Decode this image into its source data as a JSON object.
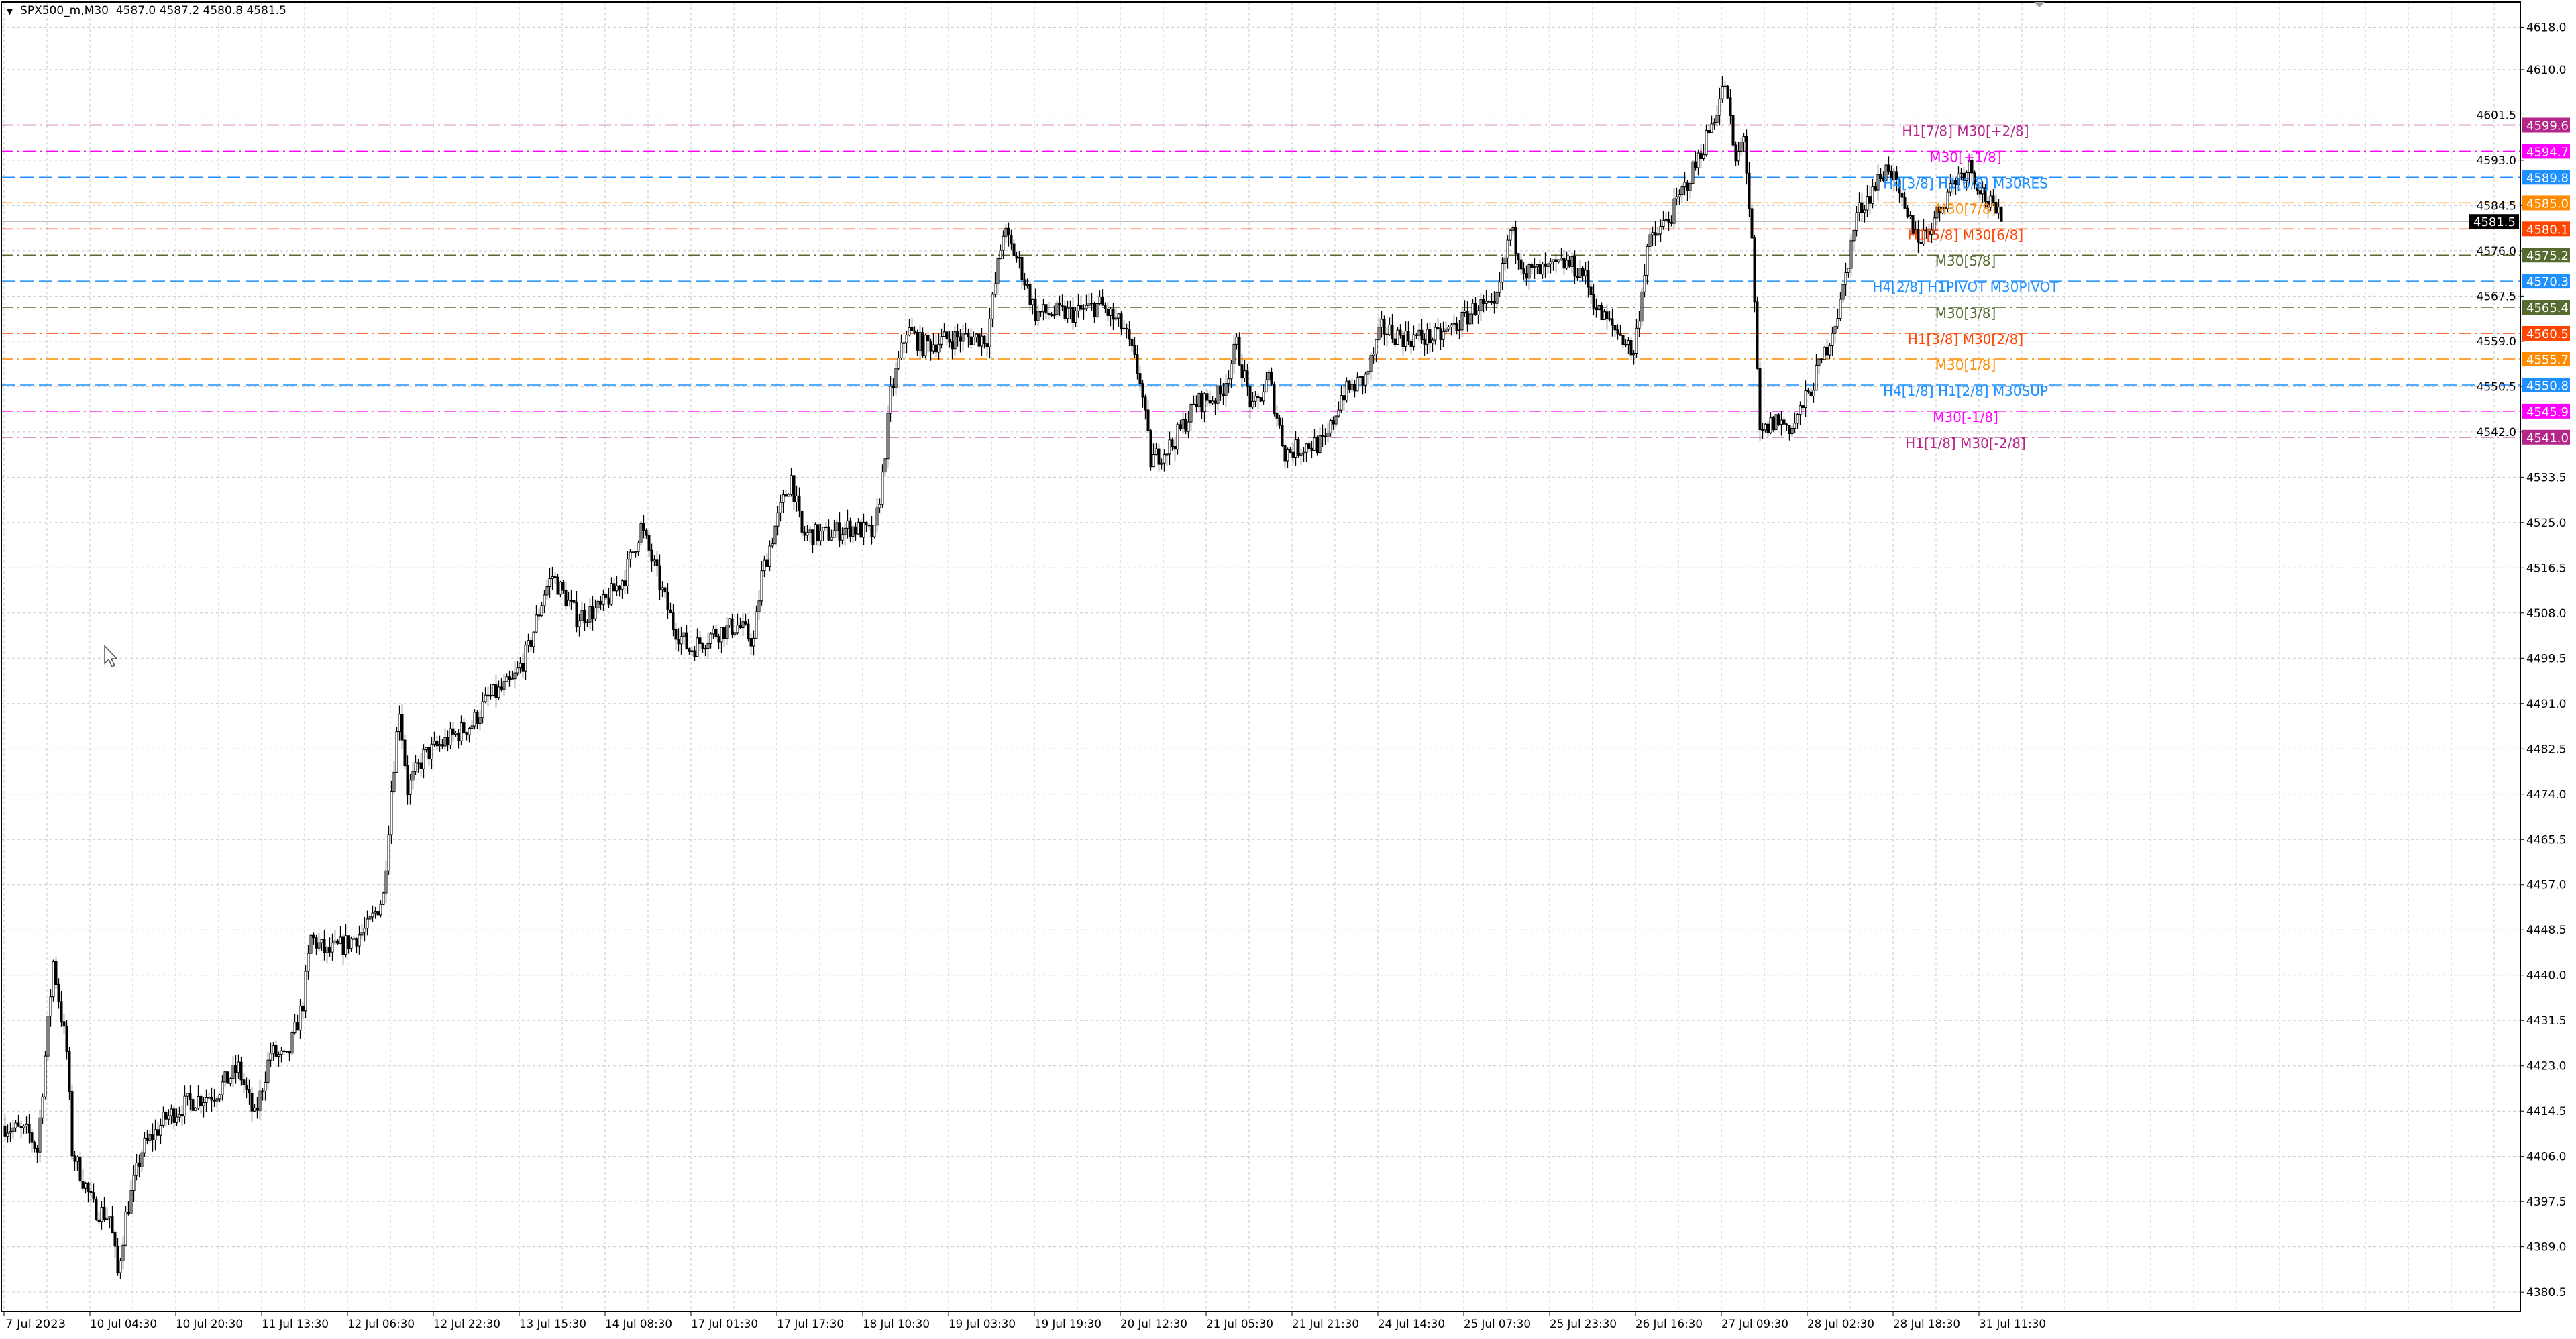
{
  "header": {
    "symbol_timeframe": "SPX500_m,M30",
    "ohlc": "4587.0 4587.2 4580.8 4581.5"
  },
  "colors": {
    "background": "#ffffff",
    "grid": "#c8c8c8",
    "bull_body": "#ffffff",
    "bear_body": "#000000",
    "current_price_line": "#c0c0c0"
  },
  "chart_data": {
    "type": "candlestick",
    "ylim": [
      4376,
      4622
    ],
    "y_ticks": [
      "4618.0",
      "4610.0",
      "4601.5",
      "4593.0",
      "4584.5",
      "4576.0",
      "4567.5",
      "4559.0",
      "4550.5",
      "4542.0",
      "4533.5",
      "4525.0",
      "4516.5",
      "4508.0",
      "4499.5",
      "4491.0",
      "4482.5",
      "4474.0",
      "4465.5",
      "4457.0",
      "4448.5",
      "4440.0",
      "4431.5",
      "4423.0",
      "4414.5",
      "4406.0",
      "4397.5",
      "4389.0",
      "4380.5"
    ],
    "x_ticks": [
      "7 Jul 2023",
      "10 Jul 04:30",
      "10 Jul 20:30",
      "11 Jul 13:30",
      "12 Jul 06:30",
      "12 Jul 22:30",
      "13 Jul 15:30",
      "14 Jul 08:30",
      "17 Jul 01:30",
      "17 Jul 17:30",
      "18 Jul 10:30",
      "19 Jul 03:30",
      "19 Jul 19:30",
      "20 Jul 12:30",
      "21 Jul 05:30",
      "21 Jul 21:30",
      "24 Jul 14:30",
      "25 Jul 07:30",
      "25 Jul 23:30",
      "26 Jul 16:30",
      "27 Jul 09:30",
      "28 Jul 02:30",
      "28 Jul 18:30",
      "31 Jul 11:30"
    ],
    "bars_per_x_tick": 32,
    "close_path": [
      [
        0,
        4411.7
      ],
      [
        9,
        4410.1
      ],
      [
        12,
        4407.1
      ],
      [
        18,
        4442.5
      ],
      [
        23,
        4425.6
      ],
      [
        25,
        4407.1
      ],
      [
        33,
        4396.3
      ],
      [
        39,
        4394.7
      ],
      [
        42,
        4383.9
      ],
      [
        45,
        4394.7
      ],
      [
        51,
        4407.1
      ],
      [
        60,
        4413.2
      ],
      [
        69,
        4416.3
      ],
      [
        78,
        4417.8
      ],
      [
        87,
        4422.5
      ],
      [
        93,
        4413.2
      ],
      [
        99,
        4425.6
      ],
      [
        105,
        4424.0
      ],
      [
        111,
        4434.8
      ],
      [
        114,
        4447.1
      ],
      [
        120,
        4444.1
      ],
      [
        126,
        4445.6
      ],
      [
        135,
        4448.7
      ],
      [
        141,
        4454.9
      ],
      [
        144,
        4474.9
      ],
      [
        147,
        4490.3
      ],
      [
        150,
        4474.9
      ],
      [
        156,
        4481.1
      ],
      [
        165,
        4484.2
      ],
      [
        174,
        4487.2
      ],
      [
        180,
        4491.9
      ],
      [
        189,
        4494.9
      ],
      [
        195,
        4501.1
      ],
      [
        201,
        4511.9
      ],
      [
        204,
        4515.0
      ],
      [
        213,
        4507.3
      ],
      [
        222,
        4508.8
      ],
      [
        231,
        4515.0
      ],
      [
        237,
        4524.2
      ],
      [
        243,
        4515.0
      ],
      [
        249,
        4505.7
      ],
      [
        255,
        4501.1
      ],
      [
        264,
        4504.2
      ],
      [
        273,
        4505.7
      ],
      [
        279,
        4502.7
      ],
      [
        282,
        4515.0
      ],
      [
        287,
        4524.2
      ],
      [
        293,
        4533.5
      ],
      [
        297,
        4522.7
      ],
      [
        306,
        4522.7
      ],
      [
        315,
        4524.2
      ],
      [
        324,
        4522.7
      ],
      [
        327,
        4533.5
      ],
      [
        330,
        4548.9
      ],
      [
        336,
        4561.3
      ],
      [
        342,
        4558.2
      ],
      [
        354,
        4559.7
      ],
      [
        366,
        4559.7
      ],
      [
        372,
        4579.8
      ],
      [
        378,
        4573.6
      ],
      [
        384,
        4564.3
      ],
      [
        390,
        4564.3
      ],
      [
        399,
        4564.3
      ],
      [
        408,
        4565.9
      ],
      [
        417,
        4561.3
      ],
      [
        423,
        4552.0
      ],
      [
        427,
        4536.6
      ],
      [
        435,
        4539.7
      ],
      [
        444,
        4547.4
      ],
      [
        453,
        4548.9
      ],
      [
        459,
        4558.2
      ],
      [
        465,
        4545.8
      ],
      [
        471,
        4552.0
      ],
      [
        477,
        4538.1
      ],
      [
        486,
        4539.7
      ],
      [
        492,
        4539.7
      ],
      [
        498,
        4548.9
      ],
      [
        507,
        4552.0
      ],
      [
        513,
        4561.3
      ],
      [
        522,
        4559.7
      ],
      [
        534,
        4559.7
      ],
      [
        543,
        4562.8
      ],
      [
        549,
        4565.9
      ],
      [
        555,
        4564.3
      ],
      [
        561,
        4579.8
      ],
      [
        567,
        4572.0
      ],
      [
        573,
        4572.0
      ],
      [
        582,
        4573.6
      ],
      [
        588,
        4572.0
      ],
      [
        594,
        4564.3
      ],
      [
        603,
        4559.7
      ],
      [
        607,
        4556.6
      ],
      [
        612,
        4576.7
      ],
      [
        621,
        4582.8
      ],
      [
        630,
        4592.1
      ],
      [
        636,
        4599.8
      ],
      [
        641,
        4607.5
      ],
      [
        645,
        4592.1
      ],
      [
        648,
        4598.3
      ],
      [
        651,
        4576.7
      ],
      [
        654,
        4541.2
      ],
      [
        660,
        4544.3
      ],
      [
        666,
        4542.8
      ],
      [
        672,
        4548.9
      ],
      [
        678,
        4556.6
      ],
      [
        684,
        4565.9
      ],
      [
        690,
        4582.8
      ],
      [
        696,
        4587.5
      ],
      [
        702,
        4592.1
      ],
      [
        708,
        4582.8
      ],
      [
        714,
        4578.2
      ],
      [
        720,
        4582.8
      ],
      [
        726,
        4589.0
      ],
      [
        732,
        4592.1
      ],
      [
        738,
        4585.9
      ],
      [
        744,
        4581.5
      ]
    ],
    "current_price": {
      "value": 4581.5,
      "label": "4581.5",
      "color": "#000000"
    },
    "levels": [
      {
        "value": 4599.6,
        "label": "4599.6",
        "text": "H1[7/8] M30[+2/8]",
        "color": "#b5268a",
        "style": "dashdot"
      },
      {
        "value": 4594.7,
        "label": "4594.7",
        "text": "M30[+1/8]",
        "color": "#ff00ff",
        "style": "dashdot"
      },
      {
        "value": 4589.8,
        "label": "4589.8",
        "text": "H4[3/8] H1[6/8] M30RES",
        "color": "#1e90ff",
        "style": "dash"
      },
      {
        "value": 4585.0,
        "label": "4585.0",
        "text": "M30[7/8]",
        "color": "#ff8c00",
        "style": "dashdot"
      },
      {
        "value": 4580.1,
        "label": "4580.1",
        "text": "H1[5/8] M30[6/8]",
        "color": "#ff4500",
        "style": "dashdot"
      },
      {
        "value": 4575.2,
        "label": "4575.2",
        "text": "M30[5/8]",
        "color": "#556b2f",
        "style": "dashdot"
      },
      {
        "value": 4570.3,
        "label": "4570.3",
        "text": "H4[2/8] H1PIVOT M30PIVOT",
        "color": "#1e90ff",
        "style": "dash"
      },
      {
        "value": 4565.4,
        "label": "4565.4",
        "text": "M30[3/8]",
        "color": "#556b2f",
        "style": "dashdot"
      },
      {
        "value": 4560.5,
        "label": "4560.5",
        "text": "H1[3/8] M30[2/8]",
        "color": "#ff4500",
        "style": "dashdot"
      },
      {
        "value": 4555.7,
        "label": "4555.7",
        "text": "M30[1/8]",
        "color": "#ff8c00",
        "style": "dashdot"
      },
      {
        "value": 4550.8,
        "label": "4550.8",
        "text": "H4[1/8] H1[2/8] M30SUP",
        "color": "#1e90ff",
        "style": "dash"
      },
      {
        "value": 4545.9,
        "label": "4545.9",
        "text": "M30[-1/8]",
        "color": "#ff00ff",
        "style": "dashdot"
      },
      {
        "value": 4541.0,
        "label": "4541.0",
        "text": "H1[1/8] M30[-2/8]",
        "color": "#b5268a",
        "style": "dashdot"
      }
    ]
  },
  "icons": {
    "menu": "triangle-down-icon",
    "cursor": "mouse-pointer-icon",
    "shift": "chart-shift-triangle-icon"
  }
}
